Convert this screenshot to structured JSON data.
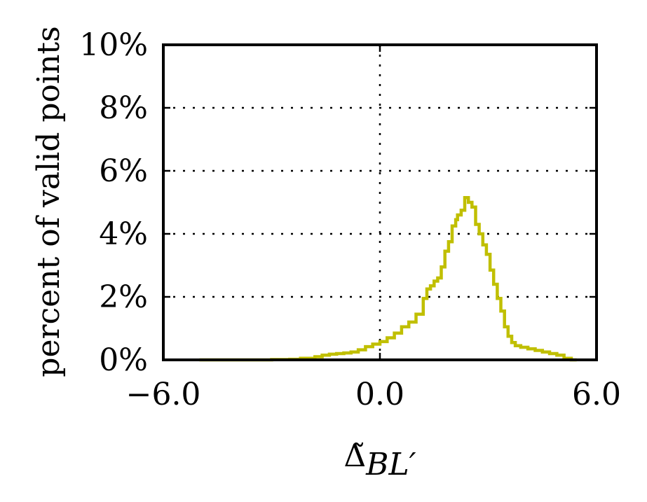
{
  "chart_data": {
    "type": "line",
    "drawstyle": "steps",
    "xlabel": "Δ̃",
    "xlabel_subscript": "BL′",
    "ylabel": "percent of valid points",
    "xlim": [
      -6.0,
      6.0
    ],
    "ylim": [
      0,
      10
    ],
    "x_ticks": [
      -6.0,
      0.0,
      6.0
    ],
    "x_tick_labels": [
      "−6.0",
      "0.0",
      "6.0"
    ],
    "y_ticks": [
      0,
      2,
      4,
      6,
      8,
      10
    ],
    "y_tick_labels": [
      "0%",
      "2%",
      "4%",
      "6%",
      "8%",
      "10%"
    ],
    "grid": true,
    "series": [
      {
        "color": "#c0bf00",
        "x": [
          -5.0,
          -4.0,
          -3.0,
          -2.5,
          -2.2,
          -1.8,
          -1.6,
          -1.4,
          -1.2,
          -1.0,
          -0.8,
          -0.6,
          -0.4,
          -0.2,
          0.0,
          0.2,
          0.4,
          0.6,
          0.8,
          1.0,
          1.2,
          1.3,
          1.4,
          1.5,
          1.6,
          1.7,
          1.8,
          1.9,
          2.0,
          2.1,
          2.15,
          2.25,
          2.35,
          2.45,
          2.55,
          2.65,
          2.75,
          2.85,
          2.95,
          3.05,
          3.15,
          3.25,
          3.35,
          3.45,
          3.55,
          3.65,
          3.75,
          3.9,
          4.1,
          4.3,
          4.5,
          4.7,
          4.9,
          5.1,
          5.3,
          5.45
        ],
        "values": [
          0.0,
          0.0,
          0.01,
          0.02,
          0.05,
          0.1,
          0.15,
          0.18,
          0.2,
          0.22,
          0.25,
          0.32,
          0.42,
          0.5,
          0.58,
          0.7,
          0.85,
          1.05,
          1.2,
          1.45,
          1.95,
          2.25,
          2.35,
          2.5,
          2.6,
          2.95,
          3.45,
          3.75,
          4.25,
          4.45,
          4.6,
          4.75,
          5.15,
          5.0,
          4.85,
          4.3,
          4.0,
          3.65,
          3.35,
          2.85,
          2.4,
          1.95,
          1.55,
          1.05,
          0.75,
          0.55,
          0.45,
          0.4,
          0.35,
          0.3,
          0.25,
          0.2,
          0.15,
          0.05,
          0.0,
          0.0
        ]
      }
    ]
  }
}
